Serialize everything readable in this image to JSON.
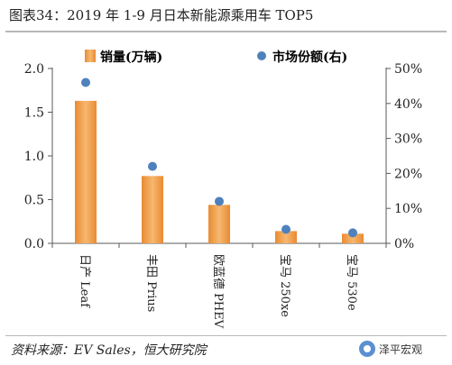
{
  "title": "图表34：2019 年 1-9 月日本新能源乘用车 TOP5",
  "source": "资料来源：EV Sales，恒大研究院",
  "watermark": {
    "text": "泽平宏观",
    "icon": "circle-logo-icon"
  },
  "colors": {
    "bar": "#f0a050",
    "bar_dark": "#e0822a",
    "dot": "#4f81bd",
    "axis": "#595959"
  },
  "chart_data": {
    "type": "bar",
    "categories": [
      "日产 Leaf",
      "丰田 Prius",
      "欧蓝德 PHEV",
      "宝马 250xe",
      "宝马 530e"
    ],
    "series": [
      {
        "name": "销量(万辆)",
        "type": "bar",
        "axis": "left",
        "values": [
          1.63,
          0.77,
          0.44,
          0.14,
          0.11
        ]
      },
      {
        "name": "市场份额(右)",
        "type": "scatter",
        "axis": "right",
        "values": [
          0.46,
          0.22,
          0.12,
          0.04,
          0.03
        ]
      }
    ],
    "y_left": {
      "ylim": [
        0,
        2.0
      ],
      "ticks": [
        "0.0",
        "0.5",
        "1.0",
        "1.5",
        "2.0"
      ]
    },
    "y_right": {
      "ylim": [
        0,
        0.5
      ],
      "ticks": [
        "0%",
        "10%",
        "20%",
        "30%",
        "40%",
        "50%"
      ]
    },
    "legend_position": "top",
    "grid": false
  }
}
